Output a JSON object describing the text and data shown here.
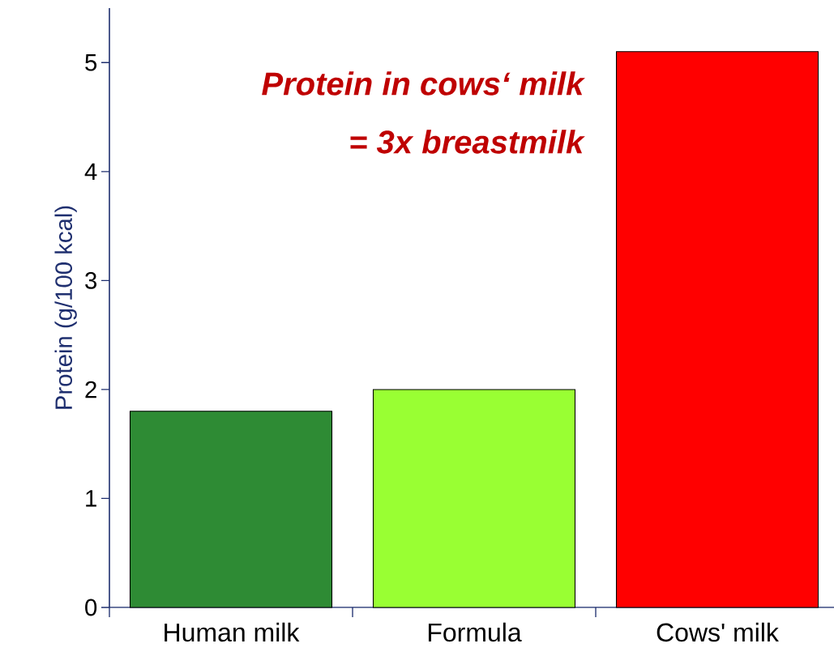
{
  "chart_data": {
    "type": "bar",
    "ylabel": "Protein (g/100 kcal)",
    "categories": [
      "Human milk",
      "Formula",
      "Cows' milk"
    ],
    "values": [
      1.8,
      2.0,
      5.1
    ],
    "colors": [
      "#2e8b34",
      "#99ff33",
      "#ff0000"
    ],
    "ylim": [
      0,
      5.5
    ],
    "yticks": [
      0,
      1,
      2,
      3,
      4,
      5
    ],
    "annotations": [
      "Protein in cows‘ milk",
      "= 3x breastmilk"
    ]
  }
}
